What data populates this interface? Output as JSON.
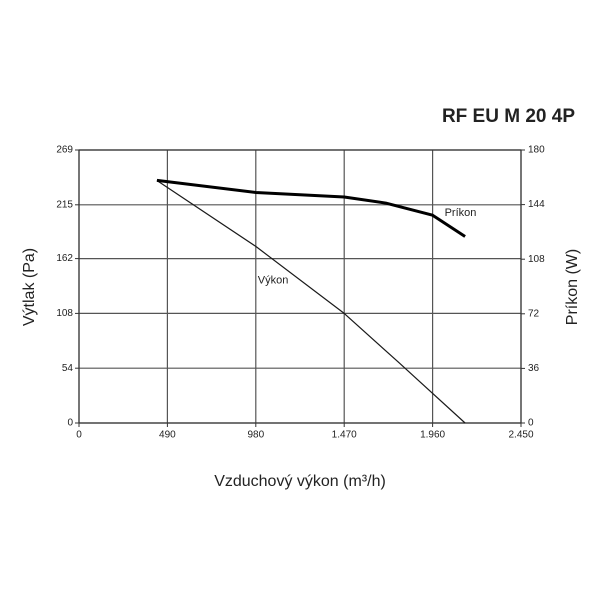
{
  "chart_data": {
    "type": "line",
    "title": "RF EU M 20 4P",
    "xlabel": "Vzduchový výkon (m³/h)",
    "ylabel": "Výtlak (Pa)",
    "y2label": "Príkon (W)",
    "xlim": [
      0,
      2450
    ],
    "xticks": [
      0,
      490,
      980,
      {
        "value": 1470,
        "label": "1.470"
      },
      {
        "value": 1960,
        "label": "1.960"
      },
      {
        "value": 2450,
        "label": "2.450"
      }
    ],
    "ylim": [
      0,
      269
    ],
    "yticks": [
      0,
      54,
      108,
      162,
      215,
      269
    ],
    "y2lim": [
      0,
      180
    ],
    "y2ticks": [
      0,
      36,
      72,
      108,
      144,
      180
    ],
    "grid": true,
    "series": [
      {
        "name": "Výkon",
        "color": "#1a1a1a",
        "x": [
          432,
          980,
          1470,
          1770,
          2140
        ],
        "values": [
          239,
          174,
          108,
          60,
          0
        ]
      },
      {
        "name": "Príkon",
        "color": "#000000",
        "axis": "y2",
        "x": [
          432,
          980,
          1470,
          1700,
          1960,
          2140
        ],
        "values": [
          160,
          152,
          149,
          145,
          137,
          123
        ]
      }
    ]
  }
}
